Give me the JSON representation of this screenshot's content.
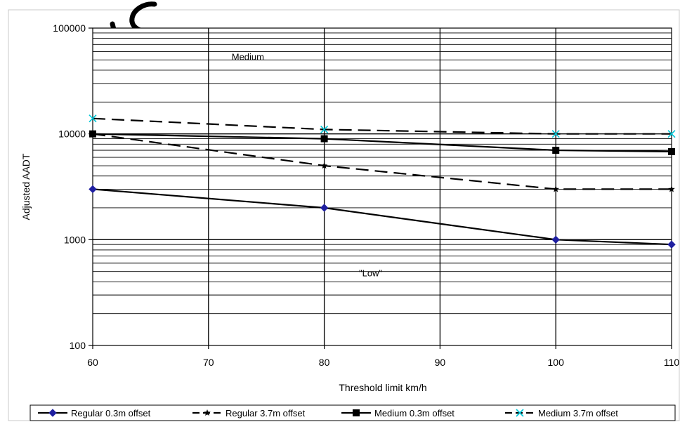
{
  "chart_data": {
    "type": "line",
    "title": "",
    "xlabel": "Threshold limit km/h",
    "ylabel": "Adjusted AADT",
    "xlim": [
      60,
      110
    ],
    "ylim": [
      100,
      100000
    ],
    "yscale": "log",
    "x_ticks": [
      "60",
      "70",
      "80",
      "90",
      "100",
      "110"
    ],
    "y_ticks": [
      "100",
      "1000",
      "10000",
      "100000"
    ],
    "grid": true,
    "legend_position": "bottom",
    "annotations": [
      {
        "text": "Medium",
        "x": 72,
        "y": 50000
      },
      {
        "text": "\"Low\"",
        "x": 83,
        "y": 450
      }
    ],
    "series": [
      {
        "name": "Regular 0.3m offset",
        "x": [
          60,
          80,
          100,
          110
        ],
        "values": [
          3000,
          2000,
          1000,
          900
        ],
        "line": "solid",
        "marker": "diamond",
        "color": "#000000",
        "marker_color": "#1f1fa0"
      },
      {
        "name": "Regular 3.7m offset",
        "x": [
          60,
          80,
          100,
          110
        ],
        "values": [
          10000,
          5000,
          3000,
          3000
        ],
        "line": "dashed",
        "marker": "star",
        "color": "#000000",
        "marker_color": "#000000"
      },
      {
        "name": "Medium 0.3m offset",
        "x": [
          60,
          80,
          100,
          110
        ],
        "values": [
          10000,
          9000,
          7000,
          6800
        ],
        "line": "solid",
        "marker": "square",
        "color": "#000000",
        "marker_color": "#000000"
      },
      {
        "name": "Medium 3.7m offset",
        "x": [
          60,
          80,
          100,
          110
        ],
        "values": [
          14000,
          11000,
          10000,
          10000
        ],
        "line": "dashed",
        "marker": "x",
        "color": "#000000",
        "marker_color": "#00c8d8"
      }
    ]
  }
}
